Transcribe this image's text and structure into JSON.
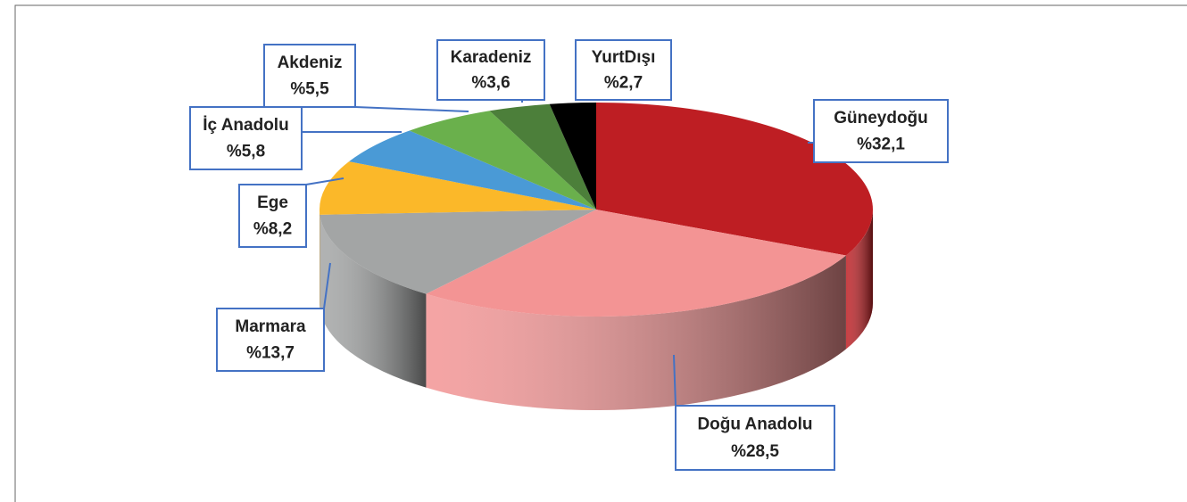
{
  "chart_data": {
    "type": "pie",
    "categories": [
      "Güneydoğu",
      "Doğu Anadolu",
      "Marmara",
      "Ege",
      "İç Anadolu",
      "Akdeniz",
      "Karadeniz",
      "YurtDışı"
    ],
    "values": [
      32.1,
      28.5,
      13.7,
      8.2,
      5.8,
      5.5,
      3.6,
      2.7
    ],
    "value_labels": [
      "%32,1",
      "%28,5",
      "%13,7",
      "%8,2",
      "%5,8",
      "%5,5",
      "%3,6",
      "%2,7"
    ],
    "colors": [
      "#be1e23",
      "#f39494",
      "#a3a5a5",
      "#fbb829",
      "#4a9ad6",
      "#6ab04c",
      "#4c7f3a",
      "#000000"
    ]
  }
}
